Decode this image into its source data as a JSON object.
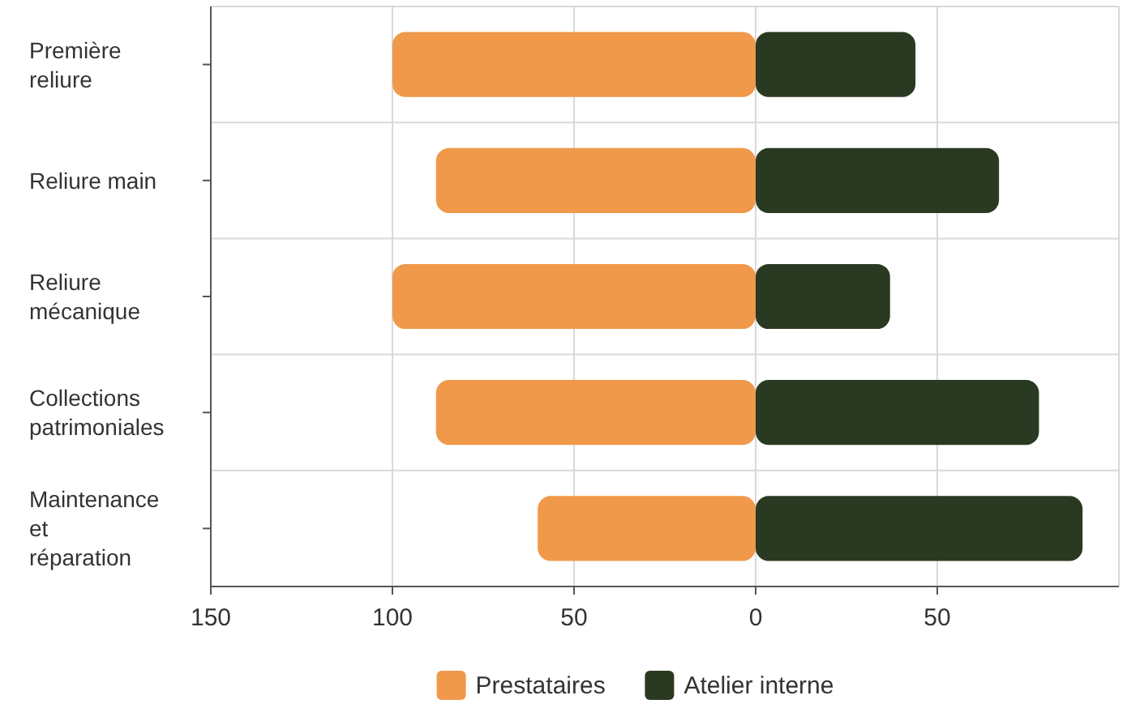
{
  "chart_data": {
    "type": "bar",
    "orientation": "horizontal",
    "stacked": true,
    "categories": [
      "Première reliure",
      "Reliure main",
      "Reliure mécanique",
      "Collections patrimoniales",
      "Maintenance et réparation"
    ],
    "series": [
      {
        "name": "Prestataires",
        "color": "#f0994a",
        "values": [
          -100,
          -88,
          -100,
          -88,
          -60
        ]
      },
      {
        "name": "Atelier interne",
        "color": "#2a3a22",
        "values": [
          44,
          67,
          37,
          78,
          90
        ]
      }
    ],
    "xlim": [
      -150,
      100
    ],
    "xticks": [
      {
        "value": -150,
        "label": "150"
      },
      {
        "value": -100,
        "label": "100"
      },
      {
        "value": -50,
        "label": "50"
      },
      0,
      50
    ],
    "grid": true,
    "legend": "bottom"
  }
}
